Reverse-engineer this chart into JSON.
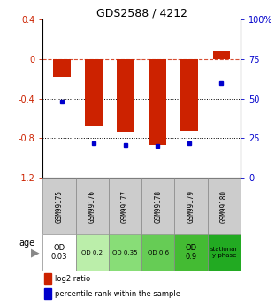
{
  "title": "GDS2588 / 4212",
  "samples": [
    "GSM99175",
    "GSM99176",
    "GSM99177",
    "GSM99178",
    "GSM99179",
    "GSM99180"
  ],
  "log2_ratio": [
    -0.18,
    -0.68,
    -0.73,
    -0.87,
    -0.72,
    0.08
  ],
  "percentile_rank": [
    48,
    22,
    21,
    20,
    22,
    60
  ],
  "bar_color": "#cc2200",
  "dot_color": "#0000cc",
  "ylim_left": [
    -1.2,
    0.4
  ],
  "ylim_right": [
    0,
    100
  ],
  "yticks_left": [
    0.4,
    0.0,
    -0.4,
    -0.8,
    -1.2
  ],
  "yticks_right": [
    100,
    75,
    50,
    25,
    0
  ],
  "dotted_lines": [
    -0.4,
    -0.8
  ],
  "age_labels": [
    "OD\n0.03",
    "OD 0.2",
    "OD 0.35",
    "OD 0.6",
    "OD\n0.9",
    "stationar\ny phase"
  ],
  "age_colors": [
    "#ffffff",
    "#bbeeaa",
    "#88dd77",
    "#66cc55",
    "#44bb33",
    "#22aa22"
  ],
  "sample_row_color": "#cccccc",
  "legend_items": [
    {
      "label": "log2 ratio",
      "color": "#cc2200"
    },
    {
      "label": "percentile rank within the sample",
      "color": "#0000cc"
    }
  ]
}
